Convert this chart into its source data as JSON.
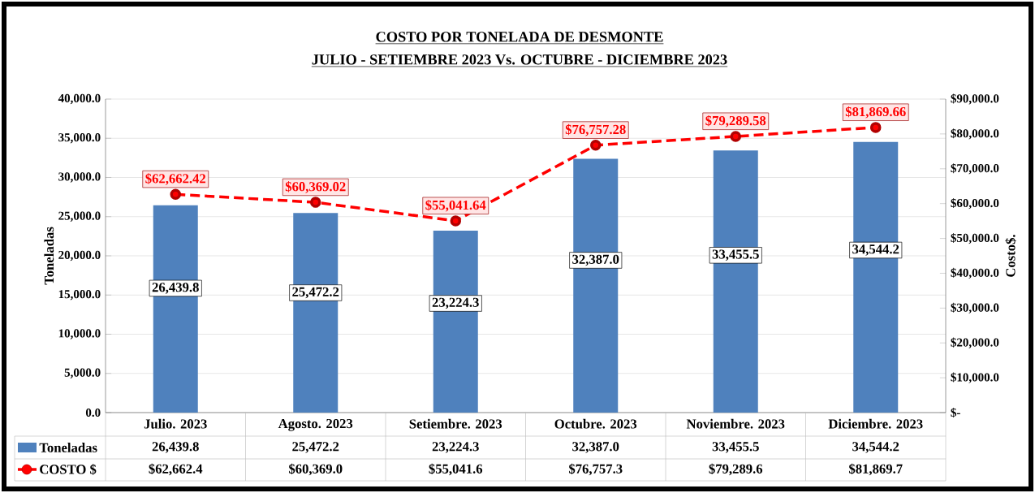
{
  "chart_data": {
    "type": "bar",
    "title": "COSTO POR TONELADA DE DESMONTE",
    "subtitle": "JULIO - SETIEMBRE 2023 Vs. OCTUBRE - DICIEMBRE 2023",
    "ylabel": "Toneladas",
    "y2label": "Costo$.",
    "categories": [
      "Julio. 2023",
      "Agosto. 2023",
      "Setiembre. 2023",
      "Octubre. 2023",
      "Noviembre. 2023",
      "Diciembre. 2023"
    ],
    "series": [
      {
        "name": "Toneladas",
        "color": "#4f81bd",
        "values": [
          26439.8,
          25472.2,
          23224.3,
          32387.0,
          33455.5,
          34544.2
        ],
        "value_labels": [
          "26,439.8",
          "25,472.2",
          "23,224.3",
          "32,387.0",
          "33,455.5",
          "34,544.2"
        ]
      },
      {
        "name": "COSTO $",
        "type": "line",
        "axis": "y2",
        "color": "#ff0000",
        "marker": "circle",
        "line_style": "dashed",
        "values": [
          62662.42,
          60369.02,
          55041.64,
          76757.28,
          79289.58,
          81869.66
        ],
        "value_labels": [
          "$62,662.42",
          "$60,369.02",
          "$55,041.64",
          "$76,757.28",
          "$79,289.58",
          "$81,869.66"
        ]
      }
    ],
    "ylim": [
      0,
      40000
    ],
    "yticks": [
      {
        "value": 0,
        "label": "0.0"
      },
      {
        "value": 5000,
        "label": "5,000.0"
      },
      {
        "value": 10000,
        "label": "10,000.0"
      },
      {
        "value": 15000,
        "label": "15,000.0"
      },
      {
        "value": 20000,
        "label": "20,000.0"
      },
      {
        "value": 25000,
        "label": "25,000.0"
      },
      {
        "value": 30000,
        "label": "30,000.0"
      },
      {
        "value": 35000,
        "label": "35,000.0"
      },
      {
        "value": 40000,
        "label": "40,000.0"
      }
    ],
    "y2lim": [
      0,
      90000
    ],
    "y2ticks": [
      {
        "value": 0,
        "label": "$-"
      },
      {
        "value": 10000,
        "label": "$10,000.0"
      },
      {
        "value": 20000,
        "label": "$20,000.0"
      },
      {
        "value": 30000,
        "label": "$30,000.0"
      },
      {
        "value": 40000,
        "label": "$40,000.0"
      },
      {
        "value": 50000,
        "label": "$50,000.0"
      },
      {
        "value": 60000,
        "label": "$60,000.0"
      },
      {
        "value": 70000,
        "label": "$70,000.0"
      },
      {
        "value": 80000,
        "label": "$80,000.0"
      },
      {
        "value": 90000,
        "label": "$90,000.0"
      }
    ],
    "grid": "y",
    "legend": "bottom left",
    "annotations": [
      "$62,662.4",
      "$60,369.0",
      "$55,041.6",
      "$76,757.3",
      "$79,289.6",
      "$81,869.7"
    ]
  }
}
